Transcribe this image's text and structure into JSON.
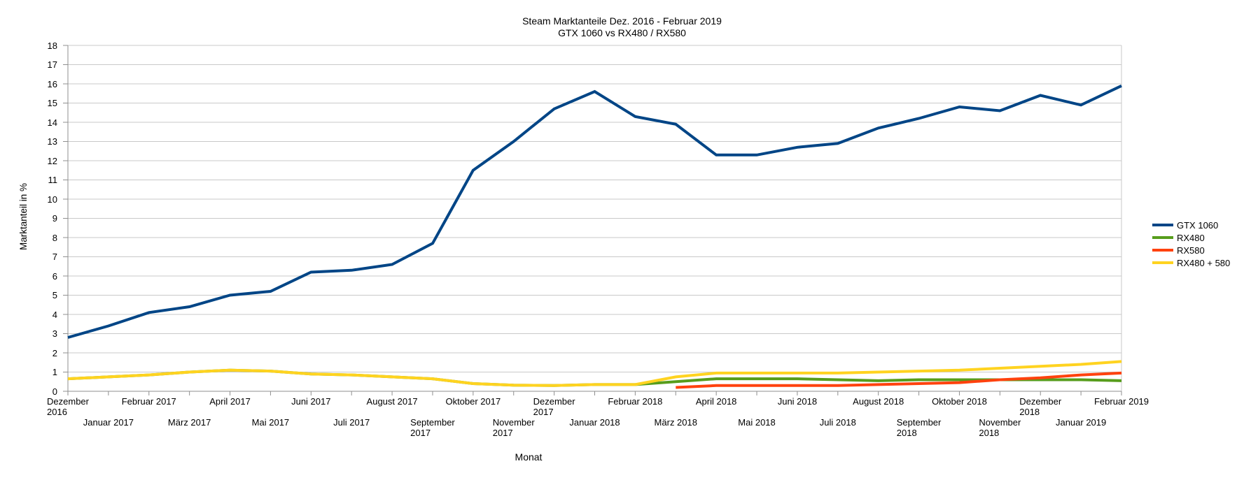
{
  "title": {
    "line1": "Steam Marktanteile Dez. 2016 - Februar 2019",
    "line2": "GTX 1060 vs RX480 / RX580"
  },
  "axes": {
    "y_label": "Marktanteil in %",
    "x_label": "Monat",
    "y_min": 0,
    "y_max": 18,
    "y_step": 1
  },
  "colors": {
    "gridline": "#c9c9c9",
    "axis": "#8f8f8f",
    "background": "#ffffff"
  },
  "chart_data": {
    "type": "line",
    "title": "Steam Marktanteile Dez. 2016 - Februar 2019\nGTX 1060 vs RX480 / RX580",
    "xlabel": "Monat",
    "ylabel": "Marktanteil in %",
    "ylim": [
      0,
      18
    ],
    "grid": "horizontal",
    "legend_position": "right",
    "categories": [
      "Dezember 2016",
      "Januar 2017",
      "Februar 2017",
      "März 2017",
      "April 2017",
      "Mai 2017",
      "Juni 2017",
      "Juli 2017",
      "August 2017",
      "September 2017",
      "Oktober 2017",
      "November 2017",
      "Dezember 2017",
      "Januar 2018",
      "Februar 2018",
      "März 2018",
      "April 2018",
      "Mai 2018",
      "Juni 2018",
      "Juli 2018",
      "August 2018",
      "September 2018",
      "Oktober 2018",
      "November 2018",
      "Dezember 2018",
      "Januar 2019",
      "Februar 2019"
    ],
    "tick_label_lines": [
      [
        "Dezember",
        "2016"
      ],
      [
        "Januar 2017"
      ],
      [
        "Februar 2017"
      ],
      [
        "März 2017"
      ],
      [
        "April 2017"
      ],
      [
        "Mai 2017"
      ],
      [
        "Juni 2017"
      ],
      [
        "Juli 2017"
      ],
      [
        "August 2017"
      ],
      [
        "September",
        "2017"
      ],
      [
        "Oktober 2017"
      ],
      [
        "November",
        "2017"
      ],
      [
        "Dezember",
        "2017"
      ],
      [
        "Januar 2018"
      ],
      [
        "Februar 2018"
      ],
      [
        "März 2018"
      ],
      [
        "April 2018"
      ],
      [
        "Mai 2018"
      ],
      [
        "Juni 2018"
      ],
      [
        "Juli 2018"
      ],
      [
        "August 2018"
      ],
      [
        "September",
        "2018"
      ],
      [
        "Oktober 2018"
      ],
      [
        "November",
        "2018"
      ],
      [
        "Dezember",
        "2018"
      ],
      [
        "Januar 2019"
      ],
      [
        "Februar 2019"
      ]
    ],
    "series": [
      {
        "name": "GTX 1060",
        "color": "#004586",
        "width": 4,
        "values": [
          2.8,
          3.4,
          4.1,
          4.4,
          5.0,
          5.2,
          6.2,
          6.3,
          6.6,
          7.7,
          11.5,
          13.0,
          14.7,
          15.6,
          14.3,
          13.9,
          12.3,
          12.3,
          12.7,
          12.9,
          13.7,
          14.2,
          14.8,
          14.6,
          15.4,
          14.9,
          15.9
        ]
      },
      {
        "name": "RX480",
        "color": "#579d1c",
        "width": 4,
        "values": [
          0.65,
          0.75,
          0.85,
          1.0,
          1.1,
          1.05,
          0.9,
          0.85,
          0.75,
          0.65,
          0.4,
          0.32,
          0.3,
          0.35,
          0.35,
          0.5,
          0.65,
          0.65,
          0.65,
          0.6,
          0.55,
          0.6,
          0.6,
          0.6,
          0.6,
          0.6,
          0.55
        ]
      },
      {
        "name": "RX580",
        "color": "#ff420e",
        "width": 4,
        "values": [
          null,
          null,
          null,
          null,
          null,
          null,
          null,
          null,
          null,
          null,
          null,
          null,
          null,
          null,
          null,
          0.2,
          0.3,
          0.3,
          0.3,
          0.3,
          0.35,
          0.4,
          0.45,
          0.6,
          0.7,
          0.85,
          0.95
        ]
      },
      {
        "name": "RX480 + 580",
        "color": "#ffd320",
        "width": 4,
        "values": [
          0.65,
          0.75,
          0.85,
          1.0,
          1.1,
          1.05,
          0.9,
          0.85,
          0.75,
          0.65,
          0.4,
          0.32,
          0.3,
          0.35,
          0.35,
          0.75,
          0.95,
          0.95,
          0.95,
          0.95,
          1.0,
          1.05,
          1.1,
          1.2,
          1.3,
          1.4,
          1.55
        ]
      }
    ]
  }
}
